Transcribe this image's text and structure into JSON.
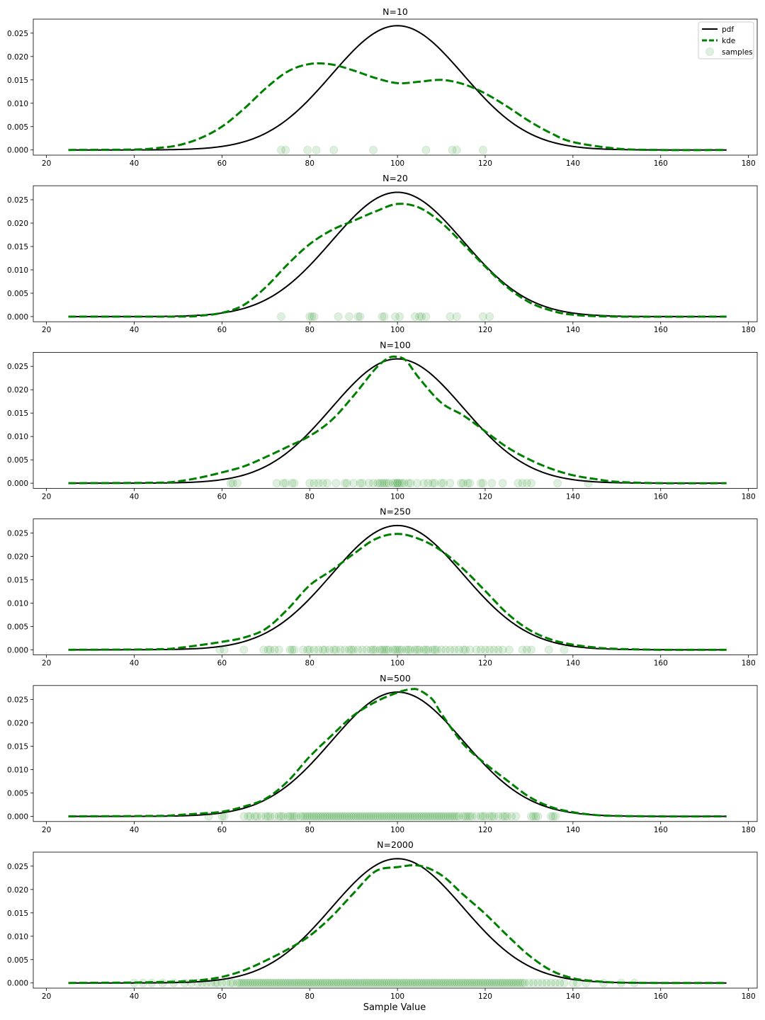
{
  "figure": {
    "xlabel": "Sample Value"
  },
  "style": {
    "pdf_color": "#000000",
    "kde_color": "#008000",
    "sample_color": "#008000"
  },
  "legend": {
    "placement": "top-right",
    "entries": [
      "pdf",
      "kde",
      "samples"
    ]
  },
  "chart_data": [
    {
      "type": "line",
      "title": "N=10",
      "xlim": [
        17,
        182
      ],
      "ylim": [
        -0.0011,
        0.028
      ],
      "xticks": [
        20,
        40,
        60,
        80,
        100,
        120,
        140,
        160,
        180
      ],
      "yticks": [
        "0.000",
        "0.005",
        "0.010",
        "0.015",
        "0.020",
        "0.025"
      ],
      "pdf": {
        "name": "pdf",
        "mean": 100,
        "sd": 15,
        "x_range": [
          25,
          175
        ]
      },
      "kde": {
        "name": "kde",
        "x": [
          25,
          40,
          45,
          50,
          55,
          60,
          65,
          70,
          75,
          80,
          85,
          90,
          95,
          100,
          105,
          110,
          115,
          120,
          125,
          130,
          135,
          140,
          150,
          160,
          175
        ],
        "y": [
          0,
          0.0001,
          0.0004,
          0.001,
          0.0025,
          0.005,
          0.0088,
          0.0132,
          0.0168,
          0.0184,
          0.0183,
          0.017,
          0.0154,
          0.0143,
          0.0146,
          0.015,
          0.0141,
          0.0121,
          0.0093,
          0.0062,
          0.0036,
          0.0017,
          0.0003,
          0,
          0
        ]
      },
      "samples": [
        73.5,
        74.5,
        79.5,
        81.5,
        85.5,
        94.5,
        106.5,
        112.5,
        113.5,
        119.5
      ]
    },
    {
      "type": "line",
      "title": "N=20",
      "xlim": [
        17,
        182
      ],
      "ylim": [
        -0.0011,
        0.028
      ],
      "xticks": [
        20,
        40,
        60,
        80,
        100,
        120,
        140,
        160,
        180
      ],
      "yticks": [
        "0.000",
        "0.005",
        "0.010",
        "0.015",
        "0.020",
        "0.025"
      ],
      "pdf": {
        "name": "pdf",
        "mean": 100,
        "sd": 15,
        "x_range": [
          25,
          175
        ]
      },
      "kde": {
        "name": "kde",
        "x": [
          25,
          50,
          55,
          60,
          65,
          70,
          75,
          80,
          85,
          90,
          95,
          100,
          105,
          110,
          115,
          120,
          125,
          130,
          135,
          140,
          150,
          175
        ],
        "y": [
          0,
          0,
          0.0002,
          0.0008,
          0.0025,
          0.0063,
          0.0112,
          0.0155,
          0.0185,
          0.0205,
          0.0225,
          0.0241,
          0.0233,
          0.0201,
          0.0155,
          0.0107,
          0.0063,
          0.0031,
          0.0013,
          0.0004,
          0,
          0
        ]
      },
      "samples": [
        73.5,
        80.0,
        80.5,
        81.0,
        86.5,
        89.0,
        91.0,
        91.5,
        96.5,
        97.0,
        99.5,
        100.5,
        104.0,
        105.0,
        105.5,
        106.5,
        112.0,
        113.5,
        119.5,
        121.0
      ]
    },
    {
      "type": "line",
      "title": "N=100",
      "xlim": [
        17,
        182
      ],
      "ylim": [
        -0.0011,
        0.028
      ],
      "xticks": [
        20,
        40,
        60,
        80,
        100,
        120,
        140,
        160,
        180
      ],
      "yticks": [
        "0.000",
        "0.005",
        "0.010",
        "0.015",
        "0.020",
        "0.025"
      ],
      "pdf": {
        "name": "pdf",
        "mean": 100,
        "sd": 15,
        "x_range": [
          25,
          175
        ]
      },
      "kde": {
        "name": "kde",
        "x": [
          25,
          45,
          50,
          55,
          60,
          65,
          70,
          75,
          80,
          85,
          90,
          95,
          98,
          100,
          102,
          105,
          110,
          115,
          120,
          125,
          130,
          135,
          140,
          145,
          150,
          160,
          175
        ],
        "y": [
          0,
          0.0001,
          0.0004,
          0.0012,
          0.0023,
          0.0036,
          0.0056,
          0.0078,
          0.0101,
          0.0135,
          0.0187,
          0.0245,
          0.0268,
          0.027,
          0.0262,
          0.0224,
          0.0172,
          0.0145,
          0.0111,
          0.0077,
          0.0051,
          0.0031,
          0.0017,
          0.0009,
          0.0003,
          0,
          0
        ]
      },
      "samples": [
        62.0,
        62.5,
        63.5,
        72.5,
        74.0,
        74.5,
        76.0,
        76.5,
        80.0,
        81.0,
        82.0,
        83.0,
        84.0,
        86.0,
        88.0,
        88.5,
        90.0,
        91.5,
        92.0,
        93.5,
        94.5,
        95.5,
        96.0,
        96.5,
        97.0,
        97.5,
        98.0,
        99.0,
        99.5,
        100.0,
        100.0,
        100.5,
        101.0,
        101.5,
        102.5,
        103.0,
        104.5,
        106.0,
        107.0,
        108.0,
        108.5,
        110.0,
        110.5,
        112.0,
        114.5,
        115.0,
        116.0,
        116.5,
        119.0,
        119.5,
        121.5,
        124.0,
        127.5,
        128.5,
        129.5,
        130.5,
        136.5,
        143.5
      ]
    },
    {
      "type": "line",
      "title": "N=250",
      "xlim": [
        17,
        182
      ],
      "ylim": [
        -0.0011,
        0.028
      ],
      "xticks": [
        20,
        40,
        60,
        80,
        100,
        120,
        140,
        160,
        180
      ],
      "yticks": [
        "0.000",
        "0.005",
        "0.010",
        "0.015",
        "0.020",
        "0.025"
      ],
      "pdf": {
        "name": "pdf",
        "mean": 100,
        "sd": 15,
        "x_range": [
          25,
          175
        ]
      },
      "kde": {
        "name": "kde",
        "x": [
          25,
          45,
          50,
          55,
          60,
          65,
          70,
          75,
          80,
          85,
          90,
          95,
          100,
          105,
          110,
          115,
          120,
          125,
          130,
          135,
          140,
          145,
          150,
          160,
          175
        ],
        "y": [
          0,
          0.0001,
          0.0004,
          0.001,
          0.0017,
          0.0026,
          0.0045,
          0.0087,
          0.0138,
          0.017,
          0.0205,
          0.0237,
          0.0248,
          0.0237,
          0.0212,
          0.0173,
          0.0126,
          0.0078,
          0.0043,
          0.0022,
          0.0011,
          0.0005,
          0.0002,
          0,
          0
        ]
      },
      "samples": [
        59.5,
        60.5,
        65.0,
        69.5,
        70.5,
        71.0,
        72.0,
        73.0,
        75.5,
        76.0,
        76.5,
        78.5,
        79.5,
        80.0,
        81.0,
        82.0,
        83.0,
        83.5,
        84.5,
        85.5,
        86.0,
        87.0,
        88.0,
        89.0,
        89.5,
        90.0,
        91.0,
        92.0,
        93.0,
        94.0,
        94.5,
        95.0,
        96.0,
        96.5,
        97.0,
        97.5,
        98.0,
        99.0,
        99.5,
        100.0,
        100.5,
        101.0,
        102.0,
        102.5,
        103.0,
        104.0,
        104.5,
        105.0,
        106.0,
        106.5,
        107.0,
        108.0,
        108.5,
        109.0,
        110.0,
        111.0,
        112.0,
        113.0,
        114.0,
        115.0,
        115.5,
        116.5,
        118.0,
        119.0,
        120.0,
        121.0,
        122.0,
        123.0,
        124.0,
        125.5,
        128.5,
        129.5,
        130.5,
        134.5,
        138.0
      ]
    },
    {
      "type": "line",
      "title": "N=500",
      "xlim": [
        17,
        182
      ],
      "ylim": [
        -0.0011,
        0.028
      ],
      "xticks": [
        20,
        40,
        60,
        80,
        100,
        120,
        140,
        160,
        180
      ],
      "yticks": [
        "0.000",
        "0.005",
        "0.010",
        "0.015",
        "0.020",
        "0.025"
      ],
      "pdf": {
        "name": "pdf",
        "mean": 100,
        "sd": 15,
        "x_range": [
          25,
          175
        ]
      },
      "kde": {
        "name": "kde",
        "x": [
          25,
          45,
          50,
          55,
          60,
          65,
          70,
          75,
          80,
          85,
          90,
          95,
          100,
          103,
          105,
          108,
          110,
          115,
          120,
          125,
          130,
          135,
          140,
          145,
          150,
          160,
          175
        ],
        "y": [
          0,
          0.0001,
          0.0003,
          0.0006,
          0.001,
          0.0021,
          0.0038,
          0.0075,
          0.0128,
          0.0173,
          0.0216,
          0.0245,
          0.0265,
          0.0272,
          0.027,
          0.025,
          0.022,
          0.0155,
          0.0113,
          0.0077,
          0.0042,
          0.002,
          0.0009,
          0.0003,
          0.0001,
          0,
          0
        ]
      },
      "samples": [
        57.0,
        60.0,
        60.5,
        65.0,
        66.0,
        66.5,
        67.5,
        68.0,
        69.0,
        70.0,
        70.5,
        71.0,
        72.0,
        73.0,
        73.5,
        74.0,
        75.0,
        75.5,
        76.0,
        76.5,
        77.0,
        78.0,
        78.5,
        79.0,
        79.5,
        80.0,
        80.5,
        81.0,
        81.5,
        82.0,
        82.5,
        83.0,
        83.5,
        84.0,
        84.5,
        85.0,
        85.5,
        86.0,
        86.5,
        87.0,
        87.5,
        88.0,
        88.5,
        89.0,
        89.5,
        90.0,
        90.5,
        91.0,
        91.5,
        92.0,
        92.5,
        93.0,
        93.5,
        94.0,
        94.5,
        95.0,
        95.5,
        96.0,
        96.5,
        97.0,
        97.5,
        98.0,
        98.5,
        99.0,
        99.5,
        100.0,
        100.5,
        101.0,
        101.5,
        102.0,
        102.5,
        103.0,
        103.5,
        104.0,
        104.5,
        105.0,
        105.5,
        106.0,
        106.5,
        107.0,
        107.5,
        108.0,
        108.5,
        109.0,
        109.5,
        110.0,
        110.5,
        111.0,
        111.5,
        112.0,
        112.5,
        113.0,
        113.5,
        114.0,
        115.0,
        115.5,
        116.0,
        116.5,
        117.0,
        118.0,
        119.0,
        119.5,
        120.0,
        121.0,
        121.5,
        122.0,
        123.0,
        124.0,
        124.5,
        125.0,
        126.0,
        127.0,
        130.5,
        131.0,
        131.5,
        132.0,
        135.0,
        135.5,
        136.0
      ]
    },
    {
      "type": "line",
      "title": "N=2000",
      "xlim": [
        17,
        182
      ],
      "ylim": [
        -0.0011,
        0.028
      ],
      "xticks": [
        20,
        40,
        60,
        80,
        100,
        120,
        140,
        160,
        180
      ],
      "yticks": [
        "0.000",
        "0.005",
        "0.010",
        "0.015",
        "0.020",
        "0.025"
      ],
      "pdf": {
        "name": "pdf",
        "mean": 100,
        "sd": 15,
        "x_range": [
          25,
          175
        ]
      },
      "kde": {
        "name": "kde",
        "x": [
          25,
          40,
          45,
          50,
          55,
          60,
          65,
          70,
          75,
          80,
          85,
          90,
          95,
          100,
          105,
          110,
          115,
          120,
          125,
          130,
          135,
          140,
          145,
          150,
          160,
          175
        ],
        "y": [
          0,
          0.0001,
          0.0002,
          0.0003,
          0.0006,
          0.0013,
          0.0027,
          0.0048,
          0.0072,
          0.0101,
          0.0142,
          0.0192,
          0.0239,
          0.0248,
          0.0251,
          0.0231,
          0.0189,
          0.0148,
          0.0102,
          0.0059,
          0.0027,
          0.001,
          0.0004,
          0.0001,
          0,
          0
        ]
      },
      "samples": [
        40.0,
        42.0,
        44.0,
        46.5,
        49.0,
        51.5,
        53.0,
        54.5,
        55.5,
        56.5,
        57.5,
        58.5,
        59.0,
        60.0,
        61.0,
        62.0,
        62.5,
        63.5,
        64.0,
        64.5,
        65.0,
        65.5,
        66.0,
        66.5,
        67.0,
        67.5,
        68.0,
        68.5,
        69.0,
        69.5,
        70.0,
        70.5,
        71.0,
        71.5,
        72.0,
        72.5,
        73.0,
        73.5,
        74.0,
        74.5,
        75.0,
        75.5,
        76.0,
        76.5,
        77.0,
        77.5,
        78.0,
        78.5,
        79.0,
        79.5,
        80.0,
        80.5,
        81.0,
        81.5,
        82.0,
        82.5,
        83.0,
        83.5,
        84.0,
        84.5,
        85.0,
        85.5,
        86.0,
        86.5,
        87.0,
        87.5,
        88.0,
        88.5,
        89.0,
        89.5,
        90.0,
        90.5,
        91.0,
        91.5,
        92.0,
        92.5,
        93.0,
        93.5,
        94.0,
        94.5,
        95.0,
        95.5,
        96.0,
        96.5,
        97.0,
        97.5,
        98.0,
        98.5,
        99.0,
        99.5,
        100.0,
        100.5,
        101.0,
        101.5,
        102.0,
        102.5,
        103.0,
        103.5,
        104.0,
        104.5,
        105.0,
        105.5,
        106.0,
        106.5,
        107.0,
        107.5,
        108.0,
        108.5,
        109.0,
        109.5,
        110.0,
        110.5,
        111.0,
        111.5,
        112.0,
        112.5,
        113.0,
        113.5,
        114.0,
        114.5,
        115.0,
        115.5,
        116.0,
        116.5,
        117.0,
        117.5,
        118.0,
        118.5,
        119.0,
        119.5,
        120.0,
        120.5,
        121.0,
        121.5,
        122.0,
        122.5,
        123.0,
        123.5,
        124.0,
        124.5,
        125.0,
        125.5,
        126.0,
        126.5,
        127.0,
        127.5,
        128.0,
        128.5,
        129.0,
        130.0,
        131.0,
        132.0,
        133.0,
        134.0,
        135.0,
        136.0,
        137.0,
        138.0,
        140.0,
        141.0,
        143.0,
        147.0,
        151.0,
        154.0
      ]
    }
  ]
}
